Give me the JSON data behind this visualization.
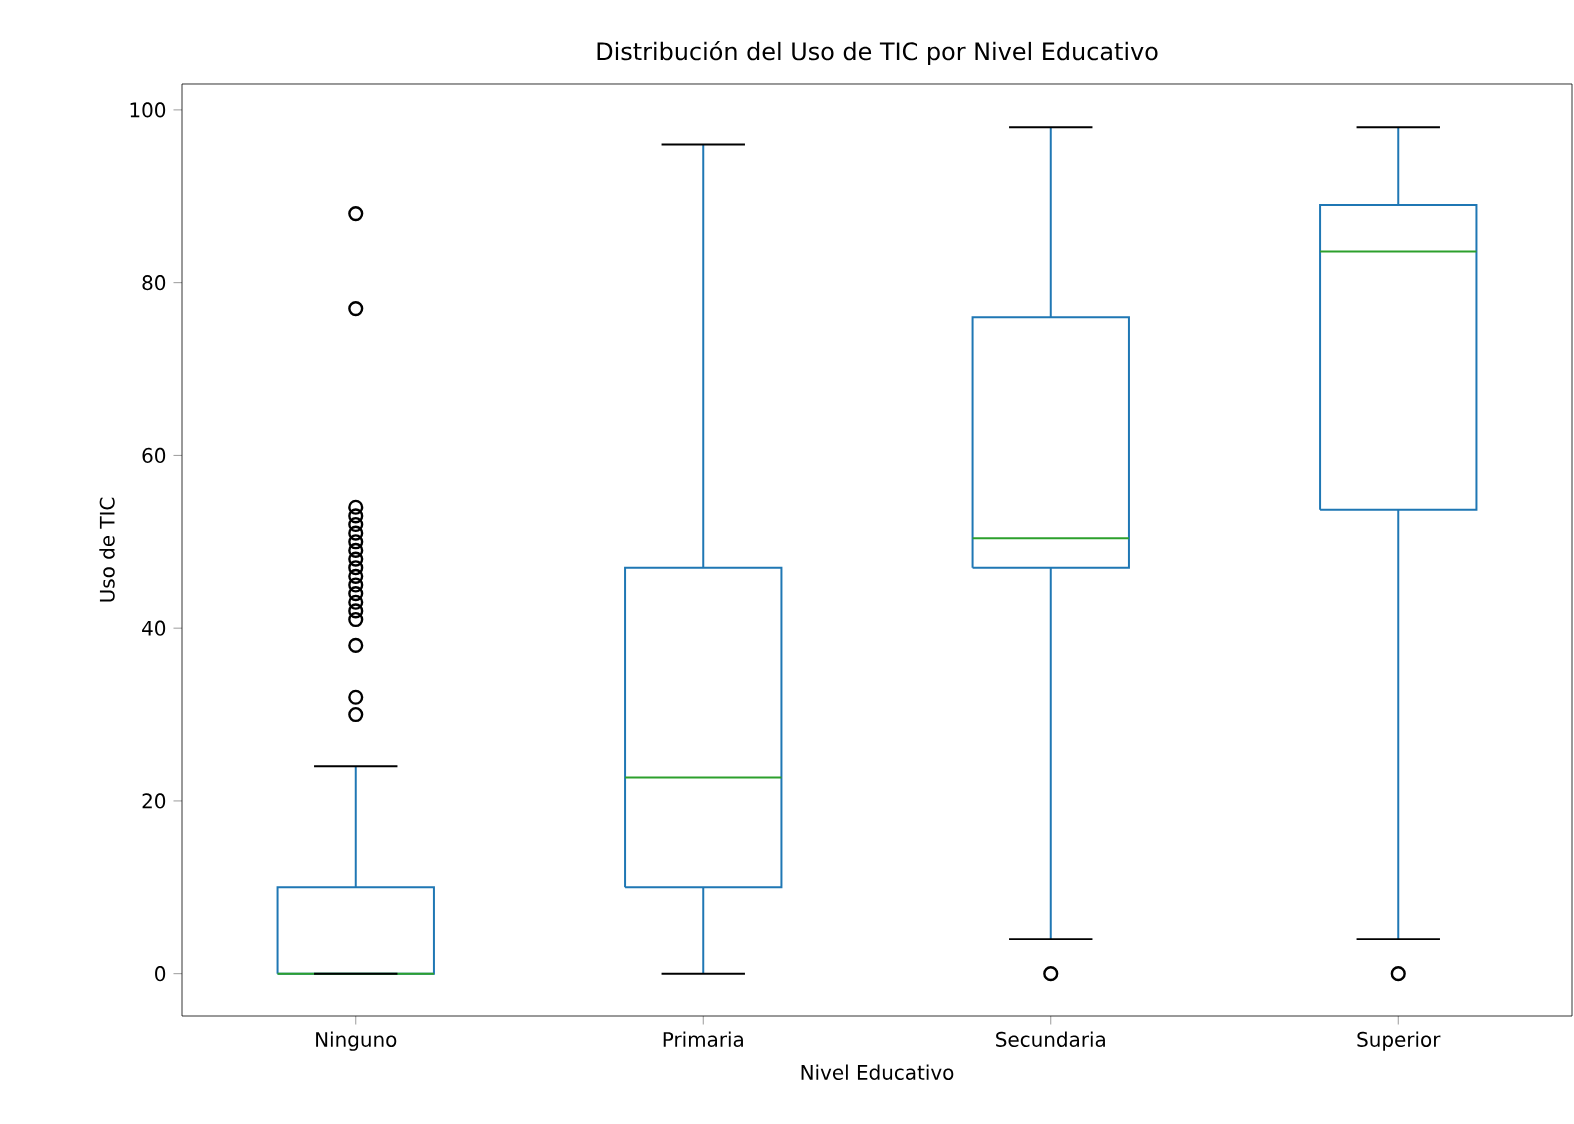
{
  "chart_data": {
    "type": "box",
    "title": "Distribución del Uso de TIC por Nivel Educativo",
    "xlabel": "Nivel Educativo",
    "ylabel": "Uso de TIC",
    "categories": [
      "Ninguno",
      "Primaria",
      "Secundaria",
      "Superior"
    ],
    "color": "#1f77b4",
    "boxes": [
      {
        "low": 0,
        "q1": 0,
        "median": 0,
        "q3": 10,
        "high": 24,
        "outliers": [
          88,
          77,
          54,
          53,
          52,
          51,
          50,
          49,
          48,
          47,
          46,
          45,
          44,
          43,
          42,
          41,
          38,
          32,
          30
        ]
      },
      {
        "low": 0,
        "q1": 10,
        "median": 22.7,
        "q3": 47,
        "high": 96
      },
      {
        "low": 4,
        "q1": 47,
        "median": 50.4,
        "q3": 76,
        "high": 98,
        "outliers": [
          0
        ]
      },
      {
        "low": 4,
        "q1": 53.7,
        "median": 83.6,
        "q3": 89,
        "high": 98,
        "outliers": [
          0
        ]
      }
    ],
    "ylim": [
      -4.9,
      103
    ],
    "yticks": [
      0,
      20,
      40,
      60,
      80,
      100
    ],
    "grid": false,
    "marker": "circle"
  }
}
